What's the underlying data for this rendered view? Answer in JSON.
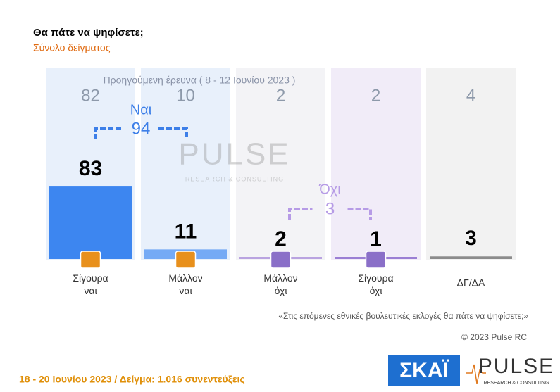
{
  "chart_data": {
    "type": "bar",
    "title": "Θα πάτε να ψηφίσετε;",
    "subtitle": "Σύνολο δείγματος",
    "previous_label": "Προηγούμενη έρευνα ( 8 - 12 Ιουνίου 2023 )",
    "categories": [
      "Σίγουρα ναι",
      "Μάλλον ναι",
      "Μάλλον όχι",
      "Σίγουρα όχι",
      "ΔΓ/ΔΑ"
    ],
    "values": [
      83,
      11,
      2,
      1,
      3
    ],
    "previous_values": [
      82,
      10,
      2,
      2,
      4
    ],
    "colors": [
      "#3d86f0",
      "#75aaf5",
      "#b9a3e0",
      "#9b7fd4",
      "#8c8c8c"
    ],
    "groups": [
      {
        "name": "Ναι",
        "value": 94,
        "color": "#3d7fe8"
      },
      {
        "name": "Όχι",
        "value": 3,
        "color": "#b69be6"
      }
    ],
    "question": "«Στις επόμενες εθνικές βουλευτικές εκλογές θα πάτε να ψηφίσετε;»",
    "copyright": "© 2023 Pulse RC",
    "footer": "18 - 20 Ιουνίου 2023 / Δείγμα: 1.016 συνεντεύξεις",
    "logo_skai": "ΣΚΑΪ",
    "logo_pulse": "PULSE",
    "logo_pulse_sub": "RESEARCH & CONSULTING"
  }
}
